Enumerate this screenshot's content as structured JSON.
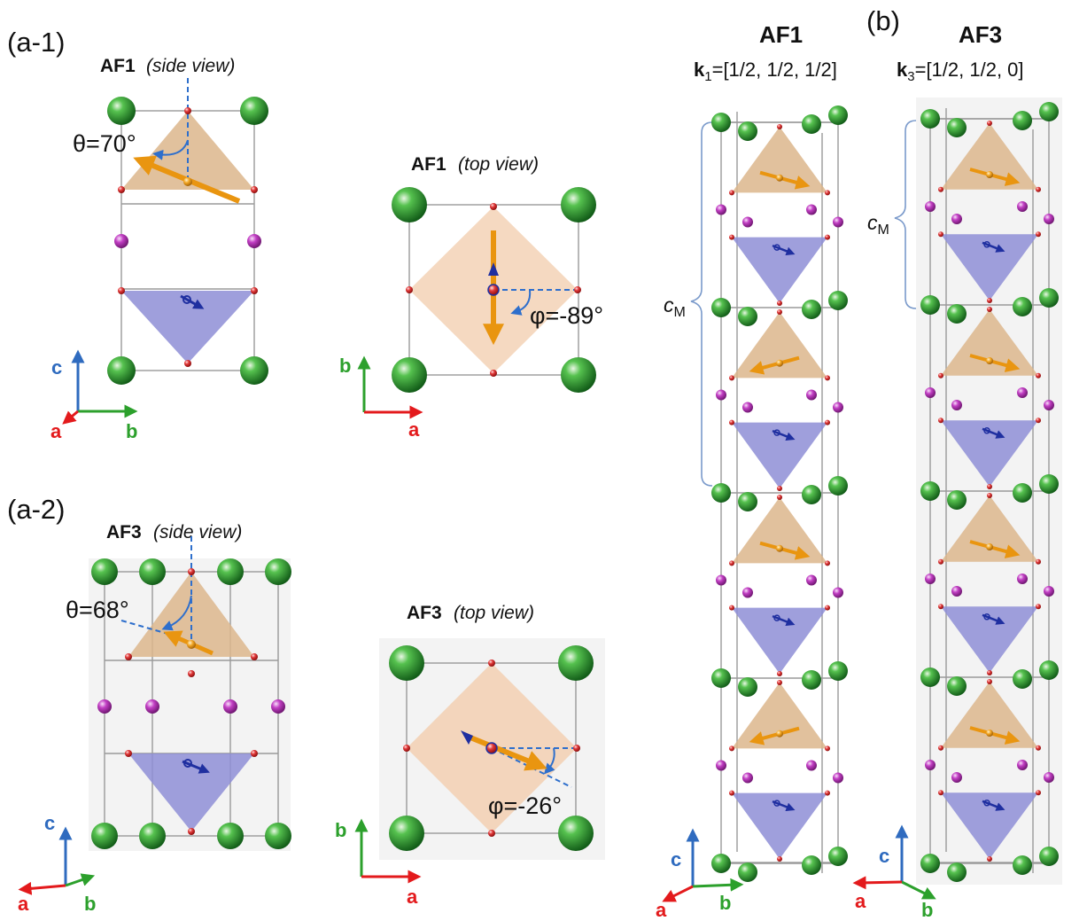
{
  "panels": {
    "a1": {
      "label": "(a-1)",
      "side_title": "AF1",
      "side_view": "(side view)",
      "top_title": "AF1",
      "top_view": "(top view)",
      "theta_label": "θ=70°",
      "phi_label": "φ=-89°"
    },
    "a2": {
      "label": "(a-2)",
      "side_title": "AF3",
      "side_view": "(side view)",
      "top_title": "AF3",
      "top_view": "(top view)",
      "theta_label": "θ=68°",
      "phi_label": "φ=-26°"
    },
    "b": {
      "label": "(b)",
      "left_title": "AF1",
      "left_k_symbol": "k",
      "left_k_sub": "1",
      "left_k_value": "=[1/2, 1/2, 1/2]",
      "right_title": "AF3",
      "right_k_symbol": "k",
      "right_k_sub": "3",
      "right_k_value": "=[1/2, 1/2, 0]",
      "cm_symbol": "c",
      "cm_sub": "M"
    }
  },
  "axes": {
    "a": "a",
    "b": "b",
    "c": "c",
    "colors": {
      "a": "#e31a1c",
      "b": "#2ca02c",
      "c": "#2f6bbf"
    }
  },
  "colors": {
    "large_atom": "#2f9b36",
    "small_atom_red": "#d42424",
    "small_atom_magenta": "#b232b4",
    "upper_tetrahedron": "#dcb68c",
    "lower_tetrahedron": "#8e8ed6",
    "moment_orange": "#f0a020",
    "moment_blue": "#1f2fa0",
    "angle_marker": "#2e6fcc"
  },
  "icons": [
    "green-atom",
    "red-atom",
    "magenta-atom",
    "moment-arrow"
  ]
}
